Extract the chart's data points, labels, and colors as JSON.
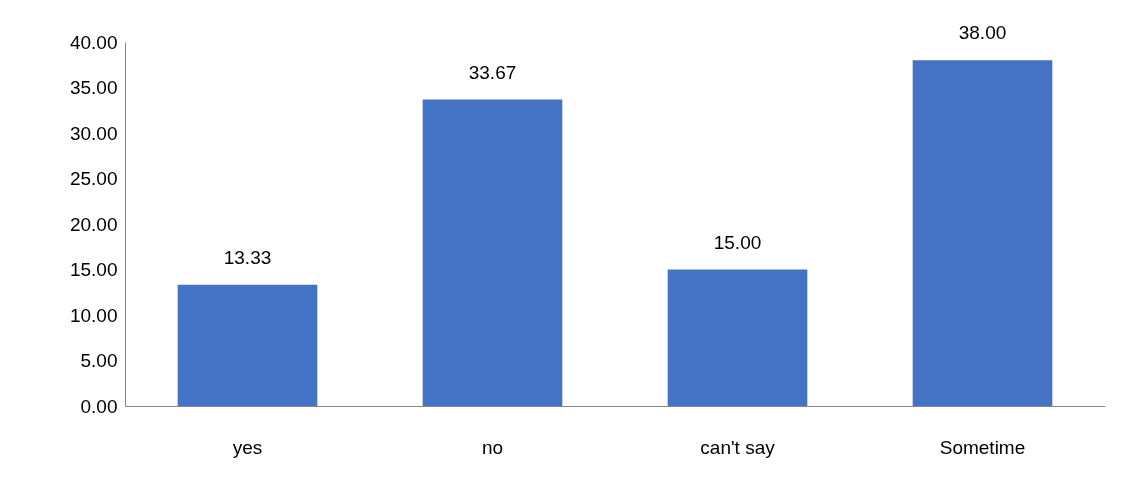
{
  "chart_data": {
    "type": "bar",
    "categories": [
      "yes",
      "no",
      "can't say",
      "Sometime"
    ],
    "values": [
      13.33,
      33.67,
      15,
      38
    ],
    "value_labels": [
      "13.33",
      "33.67",
      "15.00",
      "38.00"
    ],
    "color": "#4472c4",
    "ylim": [
      0,
      40
    ],
    "yticks": [
      {
        "value": 0,
        "label": "0.00"
      },
      {
        "value": 5,
        "label": "5.00"
      },
      {
        "value": 10,
        "label": "10.00"
      },
      {
        "value": 15,
        "label": "15.00"
      },
      {
        "value": 20,
        "label": "20.00"
      },
      {
        "value": 25,
        "label": "25.00"
      },
      {
        "value": 30,
        "label": "30.00"
      },
      {
        "value": 35,
        "label": "35.00"
      },
      {
        "value": 40,
        "label": "40.00"
      }
    ],
    "grid": false
  }
}
